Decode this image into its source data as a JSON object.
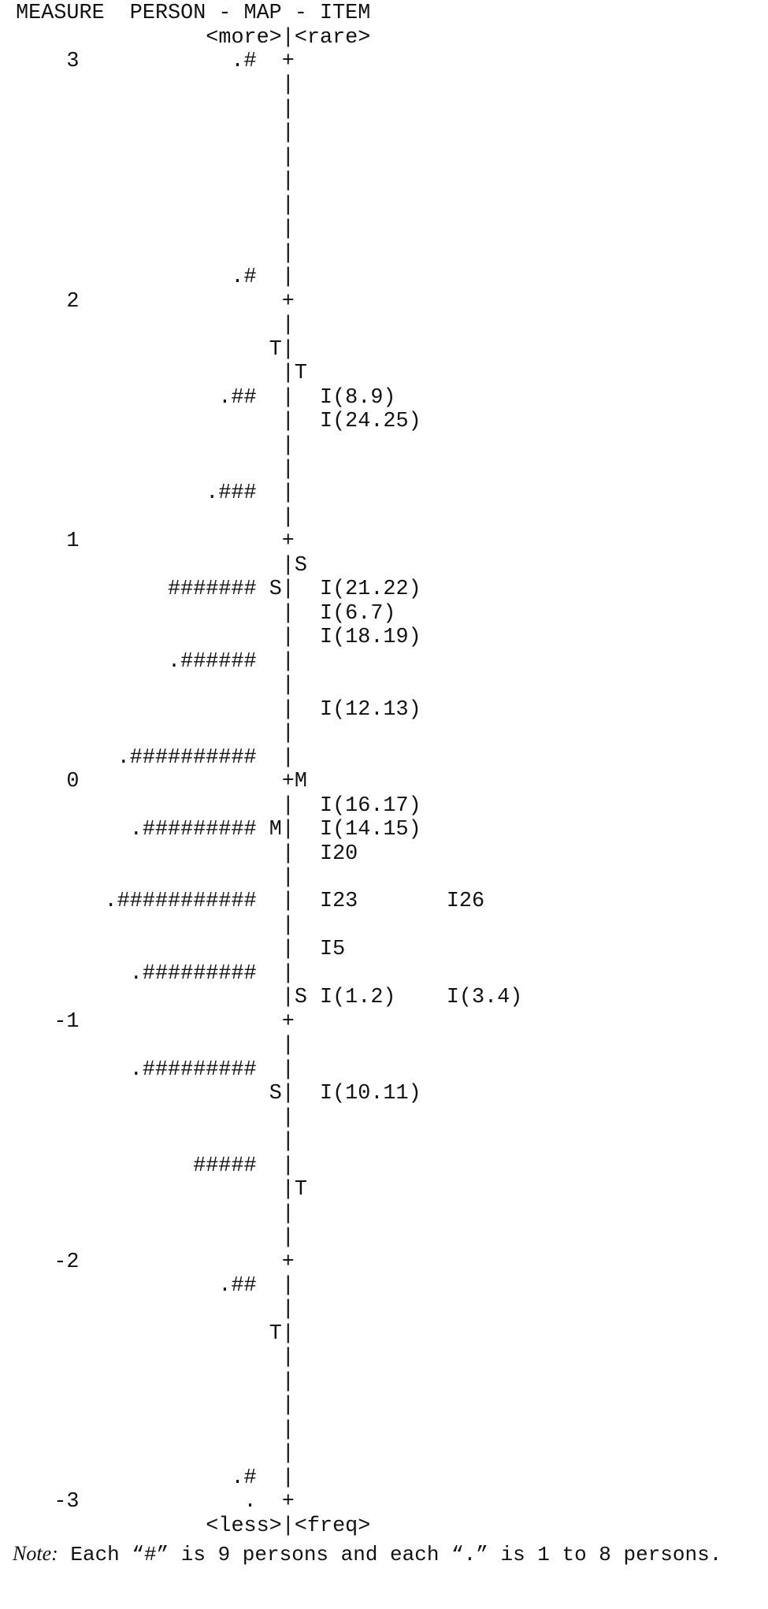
{
  "header": {
    "measure_label": "MEASURE",
    "title": "PERSON - MAP - ITEM",
    "top_left": "<more>",
    "top_right": "<rare>"
  },
  "footer": {
    "bottom_left": "<less>",
    "bottom_right": "<freq>",
    "note_label": "Note:",
    "note_text": "Each “#” is 9 persons and each “.” is 1 to 8 persons."
  },
  "rows": [
    {
      "measure": "3",
      "persons": ".#",
      "left_marker": "",
      "right_marker": "",
      "items": []
    },
    {
      "measure": "",
      "persons": "",
      "left_marker": "",
      "right_marker": "",
      "items": []
    },
    {
      "measure": "",
      "persons": "",
      "left_marker": "",
      "right_marker": "",
      "items": []
    },
    {
      "measure": "",
      "persons": "",
      "left_marker": "",
      "right_marker": "",
      "items": []
    },
    {
      "measure": "",
      "persons": "",
      "left_marker": "",
      "right_marker": "",
      "items": []
    },
    {
      "measure": "",
      "persons": "",
      "left_marker": "",
      "right_marker": "",
      "items": []
    },
    {
      "measure": "",
      "persons": "",
      "left_marker": "",
      "right_marker": "",
      "items": []
    },
    {
      "measure": "",
      "persons": "",
      "left_marker": "",
      "right_marker": "",
      "items": []
    },
    {
      "measure": "",
      "persons": "",
      "left_marker": "",
      "right_marker": "",
      "items": []
    },
    {
      "measure": "",
      "persons": ".#",
      "left_marker": "",
      "right_marker": "",
      "items": []
    },
    {
      "measure": "2",
      "persons": "",
      "left_marker": "",
      "right_marker": "",
      "items": []
    },
    {
      "measure": "",
      "persons": "",
      "left_marker": "",
      "right_marker": "",
      "items": []
    },
    {
      "measure": "",
      "persons": "",
      "left_marker": "T",
      "right_marker": "",
      "items": []
    },
    {
      "measure": "",
      "persons": "",
      "left_marker": "",
      "right_marker": "T",
      "items": []
    },
    {
      "measure": "",
      "persons": ".##",
      "left_marker": "",
      "right_marker": "",
      "items": [
        "I(8.9)"
      ]
    },
    {
      "measure": "",
      "persons": "",
      "left_marker": "",
      "right_marker": "",
      "items": [
        "I(24.25)"
      ]
    },
    {
      "measure": "",
      "persons": "",
      "left_marker": "",
      "right_marker": "",
      "items": []
    },
    {
      "measure": "",
      "persons": "",
      "left_marker": "",
      "right_marker": "",
      "items": []
    },
    {
      "measure": "",
      "persons": ".###",
      "left_marker": "",
      "right_marker": "",
      "items": []
    },
    {
      "measure": "",
      "persons": "",
      "left_marker": "",
      "right_marker": "",
      "items": []
    },
    {
      "measure": "1",
      "persons": "",
      "left_marker": "",
      "right_marker": "",
      "items": []
    },
    {
      "measure": "",
      "persons": "",
      "left_marker": "",
      "right_marker": "S",
      "items": []
    },
    {
      "measure": "",
      "persons": "#######",
      "left_marker": "S",
      "right_marker": "",
      "items": [
        "I(21.22)"
      ]
    },
    {
      "measure": "",
      "persons": "",
      "left_marker": "",
      "right_marker": "",
      "items": [
        "I(6.7)"
      ]
    },
    {
      "measure": "",
      "persons": "",
      "left_marker": "",
      "right_marker": "",
      "items": [
        "I(18.19)"
      ]
    },
    {
      "measure": "",
      "persons": ".######",
      "left_marker": "",
      "right_marker": "",
      "items": []
    },
    {
      "measure": "",
      "persons": "",
      "left_marker": "",
      "right_marker": "",
      "items": []
    },
    {
      "measure": "",
      "persons": "",
      "left_marker": "",
      "right_marker": "",
      "items": [
        "I(12.13)"
      ]
    },
    {
      "measure": "",
      "persons": "",
      "left_marker": "",
      "right_marker": "",
      "items": []
    },
    {
      "measure": "",
      "persons": ".##########",
      "left_marker": "",
      "right_marker": "",
      "items": []
    },
    {
      "measure": "0",
      "persons": "",
      "left_marker": "",
      "right_marker": "M",
      "items": []
    },
    {
      "measure": "",
      "persons": "",
      "left_marker": "",
      "right_marker": "",
      "items": [
        "I(16.17)"
      ]
    },
    {
      "measure": "",
      "persons": ".#########",
      "left_marker": "M",
      "right_marker": "",
      "items": [
        "I(14.15)"
      ]
    },
    {
      "measure": "",
      "persons": "",
      "left_marker": "",
      "right_marker": "",
      "items": [
        "I20"
      ]
    },
    {
      "measure": "",
      "persons": "",
      "left_marker": "",
      "right_marker": "",
      "items": []
    },
    {
      "measure": "",
      "persons": ".###########",
      "left_marker": "",
      "right_marker": "",
      "items": [
        "I23",
        "I26"
      ]
    },
    {
      "measure": "",
      "persons": "",
      "left_marker": "",
      "right_marker": "",
      "items": []
    },
    {
      "measure": "",
      "persons": "",
      "left_marker": "",
      "right_marker": "",
      "items": [
        "I5"
      ]
    },
    {
      "measure": "",
      "persons": ".#########",
      "left_marker": "",
      "right_marker": "",
      "items": []
    },
    {
      "measure": "",
      "persons": "",
      "left_marker": "",
      "right_marker": "S",
      "items": [
        "I(1.2)",
        "I(3.4)"
      ]
    },
    {
      "measure": "-1",
      "persons": "",
      "left_marker": "",
      "right_marker": "",
      "items": []
    },
    {
      "measure": "",
      "persons": "",
      "left_marker": "",
      "right_marker": "",
      "items": []
    },
    {
      "measure": "",
      "persons": ".#########",
      "left_marker": "",
      "right_marker": "",
      "items": []
    },
    {
      "measure": "",
      "persons": "",
      "left_marker": "S",
      "right_marker": "",
      "items": [
        "I(10.11)"
      ]
    },
    {
      "measure": "",
      "persons": "",
      "left_marker": "",
      "right_marker": "",
      "items": []
    },
    {
      "measure": "",
      "persons": "",
      "left_marker": "",
      "right_marker": "",
      "items": []
    },
    {
      "measure": "",
      "persons": "#####",
      "left_marker": "",
      "right_marker": "",
      "items": []
    },
    {
      "measure": "",
      "persons": "",
      "left_marker": "",
      "right_marker": "T",
      "items": []
    },
    {
      "measure": "",
      "persons": "",
      "left_marker": "",
      "right_marker": "",
      "items": []
    },
    {
      "measure": "",
      "persons": "",
      "left_marker": "",
      "right_marker": "",
      "items": []
    },
    {
      "measure": "-2",
      "persons": "",
      "left_marker": "",
      "right_marker": "",
      "items": []
    },
    {
      "measure": "",
      "persons": ".##",
      "left_marker": "",
      "right_marker": "",
      "items": []
    },
    {
      "measure": "",
      "persons": "",
      "left_marker": "",
      "right_marker": "",
      "items": []
    },
    {
      "measure": "",
      "persons": "",
      "left_marker": "T",
      "right_marker": "",
      "items": []
    },
    {
      "measure": "",
      "persons": "",
      "left_marker": "",
      "right_marker": "",
      "items": []
    },
    {
      "measure": "",
      "persons": "",
      "left_marker": "",
      "right_marker": "",
      "items": []
    },
    {
      "measure": "",
      "persons": "",
      "left_marker": "",
      "right_marker": "",
      "items": []
    },
    {
      "measure": "",
      "persons": "",
      "left_marker": "",
      "right_marker": "",
      "items": []
    },
    {
      "measure": "",
      "persons": "",
      "left_marker": "",
      "right_marker": "",
      "items": []
    },
    {
      "measure": "",
      "persons": ".#",
      "left_marker": "",
      "right_marker": "",
      "items": []
    },
    {
      "measure": "-3",
      "persons": ".",
      "left_marker": "",
      "right_marker": "",
      "items": []
    }
  ]
}
